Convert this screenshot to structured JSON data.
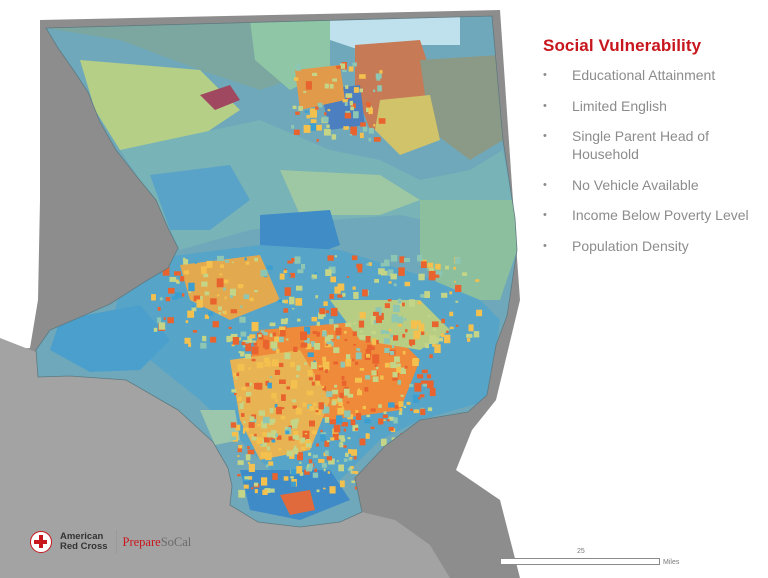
{
  "legend": {
    "title": "Social Vulnerability",
    "items": [
      "Educational Attainment",
      "Limited English",
      "Single Parent Head of Household",
      "No Vehicle Available",
      "Income Below Poverty Level",
      "Population Density"
    ]
  },
  "branding": {
    "org_line1": "American",
    "org_line2": "Red Cross",
    "program_prefix": "Prepare",
    "program_suffix": "SoCal"
  },
  "scale_bar": {
    "value": "25",
    "unit": "Miles"
  },
  "colors": {
    "ocean_gray": "#9a9a9a",
    "outer_land_gray": "#8d8d8d",
    "low_vulnerability": "#3d9fd0",
    "medium_low": "#8ec6b4",
    "medium": "#c5d587",
    "medium_high": "#f4c04e",
    "high_vulnerability": "#e8632e",
    "title_red": "#c8161d"
  }
}
